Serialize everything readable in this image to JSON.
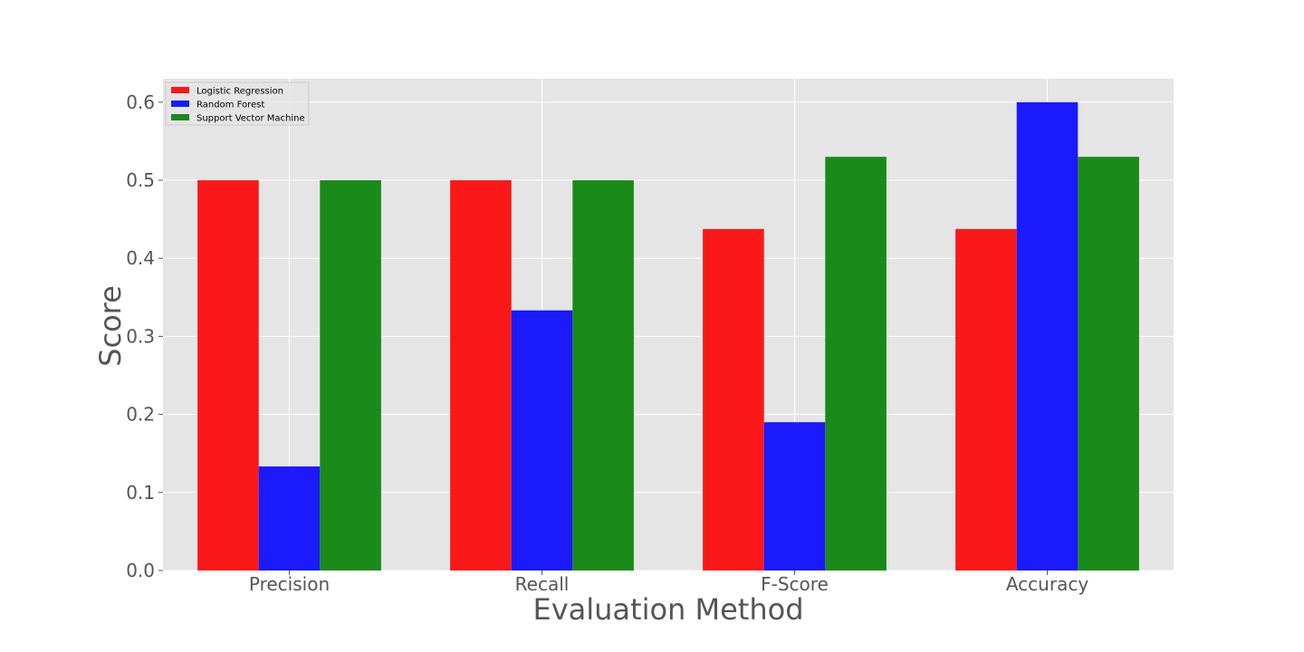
{
  "chart_data": {
    "type": "bar",
    "title": "",
    "xlabel": "Evaluation Method",
    "ylabel": "Score",
    "categories": [
      "Precision",
      "Recall",
      "F-Score",
      "Accuracy"
    ],
    "series": [
      {
        "name": "Logistic Regression",
        "color": "#fa1818",
        "values": [
          0.5,
          0.5,
          0.4375,
          0.4375
        ]
      },
      {
        "name": "Random Forest",
        "color": "#1a1afa",
        "values": [
          0.1333,
          0.3333,
          0.19,
          0.6
        ]
      },
      {
        "name": "Support Vector Machine",
        "color": "#1a8a1a",
        "values": [
          0.5,
          0.5,
          0.53,
          0.53
        ]
      }
    ],
    "ylim": [
      0,
      0.63
    ],
    "yticks": [
      "0.0",
      "0.1",
      "0.2",
      "0.3",
      "0.4",
      "0.5",
      "0.6"
    ],
    "grid": true,
    "legend_position": "top-left",
    "background": "#e5e5e5",
    "grid_color": "#ffffff"
  }
}
